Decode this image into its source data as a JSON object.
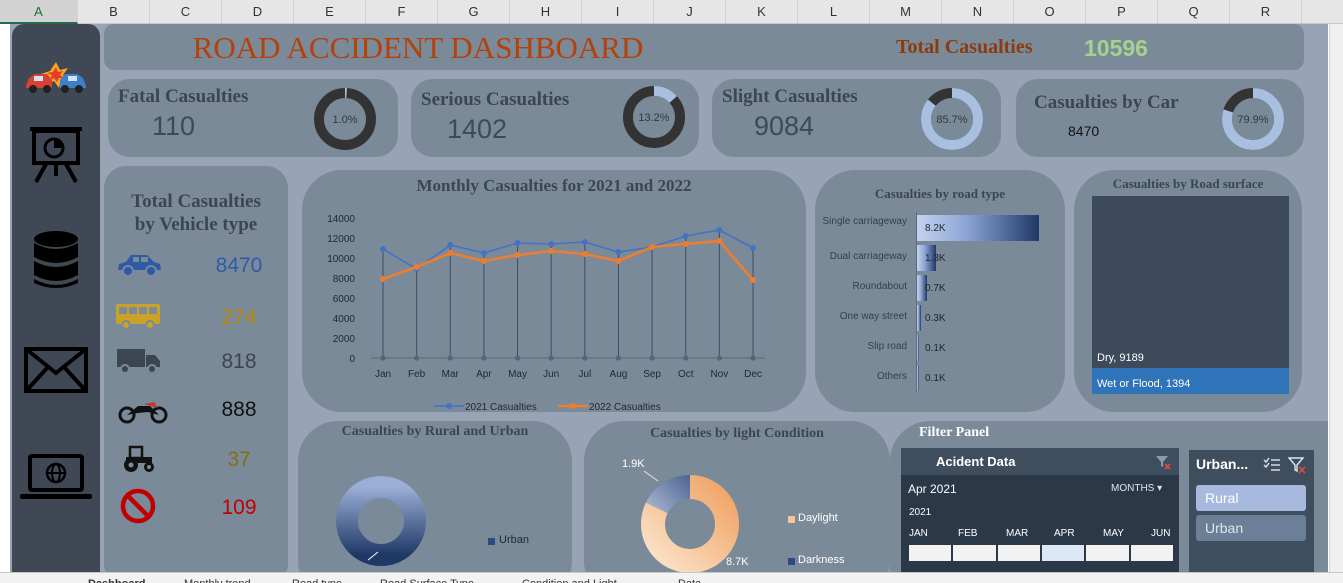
{
  "columns": [
    "A",
    "B",
    "C",
    "D",
    "E",
    "F",
    "G",
    "H",
    "I",
    "J",
    "K",
    "L",
    "M",
    "N",
    "O",
    "P",
    "Q",
    "R"
  ],
  "header": {
    "title": "ROAD ACCIDENT DASHBOARD",
    "total_label": "Total Casualties",
    "total_value": "10596"
  },
  "kpis": [
    {
      "label": "Fatal Casualties",
      "value": "110",
      "pct": "1.0%",
      "share": 0.01
    },
    {
      "label": "Serious Casualties",
      "value": "1402",
      "pct": "13.2%",
      "share": 0.132
    },
    {
      "label": "Slight Casualties",
      "value": "9084",
      "pct": "85.7%",
      "share": 0.857
    },
    {
      "label": "Casualties by Car",
      "value": "8470",
      "pct": "79.9%",
      "share": 0.799
    }
  ],
  "vehicle_panel": {
    "title_line1": "Total Casualties",
    "title_line2": "by Vehicle type",
    "items": [
      {
        "icon": "car-icon",
        "value": "8470",
        "color": "#2f5aa8"
      },
      {
        "icon": "bus-icon",
        "value": "274",
        "color": "#b8860b"
      },
      {
        "icon": "truck-icon",
        "value": "818",
        "color": "#3c4650"
      },
      {
        "icon": "motorbike-icon",
        "value": "888",
        "color": "#111111"
      },
      {
        "icon": "tractor-icon",
        "value": "37",
        "color": "#8a6d12"
      },
      {
        "icon": "no-entry-icon",
        "value": "109",
        "color": "#c00000"
      }
    ]
  },
  "monthly_chart": {
    "title": "Monthly Casualties for 2021 and 2022"
  },
  "road_type": {
    "title": "Casualties by road type"
  },
  "surface": {
    "title": "Casualties by Road surface"
  },
  "rural_urban": {
    "title": "Casualties by Rural and Urban",
    "legend": "Urban"
  },
  "light": {
    "title": "Casualties by light Condition",
    "label_small": "1.9K",
    "label_large": "8.7K",
    "legend_daylight": "Daylight",
    "legend_darkness": "Darkness"
  },
  "filter_panel": {
    "title": "Filter Panel",
    "timeline": {
      "title": "Acident Data",
      "selected": "Apr 2021",
      "period": "MONTHS",
      "year": "2021",
      "months": [
        "JAN",
        "FEB",
        "MAR",
        "APR",
        "MAY",
        "JUN"
      ]
    },
    "slicer": {
      "title": "Urban...",
      "options": [
        "Rural",
        "Urban"
      ]
    }
  },
  "sheet_tabs": [
    "Dashboard",
    "Monthly trend",
    "Road type",
    "Road Surface Type",
    "Condition and Light",
    "Data"
  ],
  "chart_data": [
    {
      "type": "line",
      "title": "Monthly Casualties for 2021 and 2022",
      "categories": [
        "Jan",
        "Feb",
        "Mar",
        "Apr",
        "May",
        "Jun",
        "Jul",
        "Aug",
        "Sep",
        "Oct",
        "Nov",
        "Dec"
      ],
      "series": [
        {
          "name": "2021 Casualties",
          "color": "#4472c4",
          "values": [
            10900,
            8900,
            11300,
            10500,
            11500,
            11400,
            11600,
            10600,
            11100,
            12200,
            12800,
            11000
          ]
        },
        {
          "name": "2022 Casualties",
          "color": "#ed7d31",
          "values": [
            7900,
            9100,
            10500,
            9700,
            10300,
            10700,
            10400,
            9700,
            11100,
            11400,
            11700,
            7800
          ]
        }
      ],
      "ylim": [
        0,
        14000
      ],
      "yticks": [
        "0",
        "2000",
        "4000",
        "6000",
        "8000",
        "10000",
        "12000",
        "14000"
      ],
      "legend": "bottom"
    },
    {
      "type": "bar",
      "title": "Casualties by road type",
      "categories": [
        "Single carriageway",
        "Dual carriageway",
        "Roundabout",
        "One way street",
        "Slip road",
        "Others"
      ],
      "values": [
        8200,
        1300,
        700,
        300,
        100,
        100
      ],
      "labels": [
        "8.2K",
        "1.3K",
        "0.7K",
        "0.3K",
        "0.1K",
        "0.1K"
      ]
    },
    {
      "type": "bar",
      "title": "Casualties by Road surface",
      "categories": [
        "Dry",
        "Wet or Flood"
      ],
      "values": [
        9189,
        1394
      ],
      "labels": [
        "Dry, 9189",
        "Wet or Flood, 1394"
      ]
    },
    {
      "type": "pie",
      "title": "Casualties by light Condition",
      "categories": [
        "Daylight",
        "Darkness"
      ],
      "values": [
        8700,
        1900
      ],
      "labels": [
        "8.7K",
        "1.9K"
      ]
    }
  ]
}
